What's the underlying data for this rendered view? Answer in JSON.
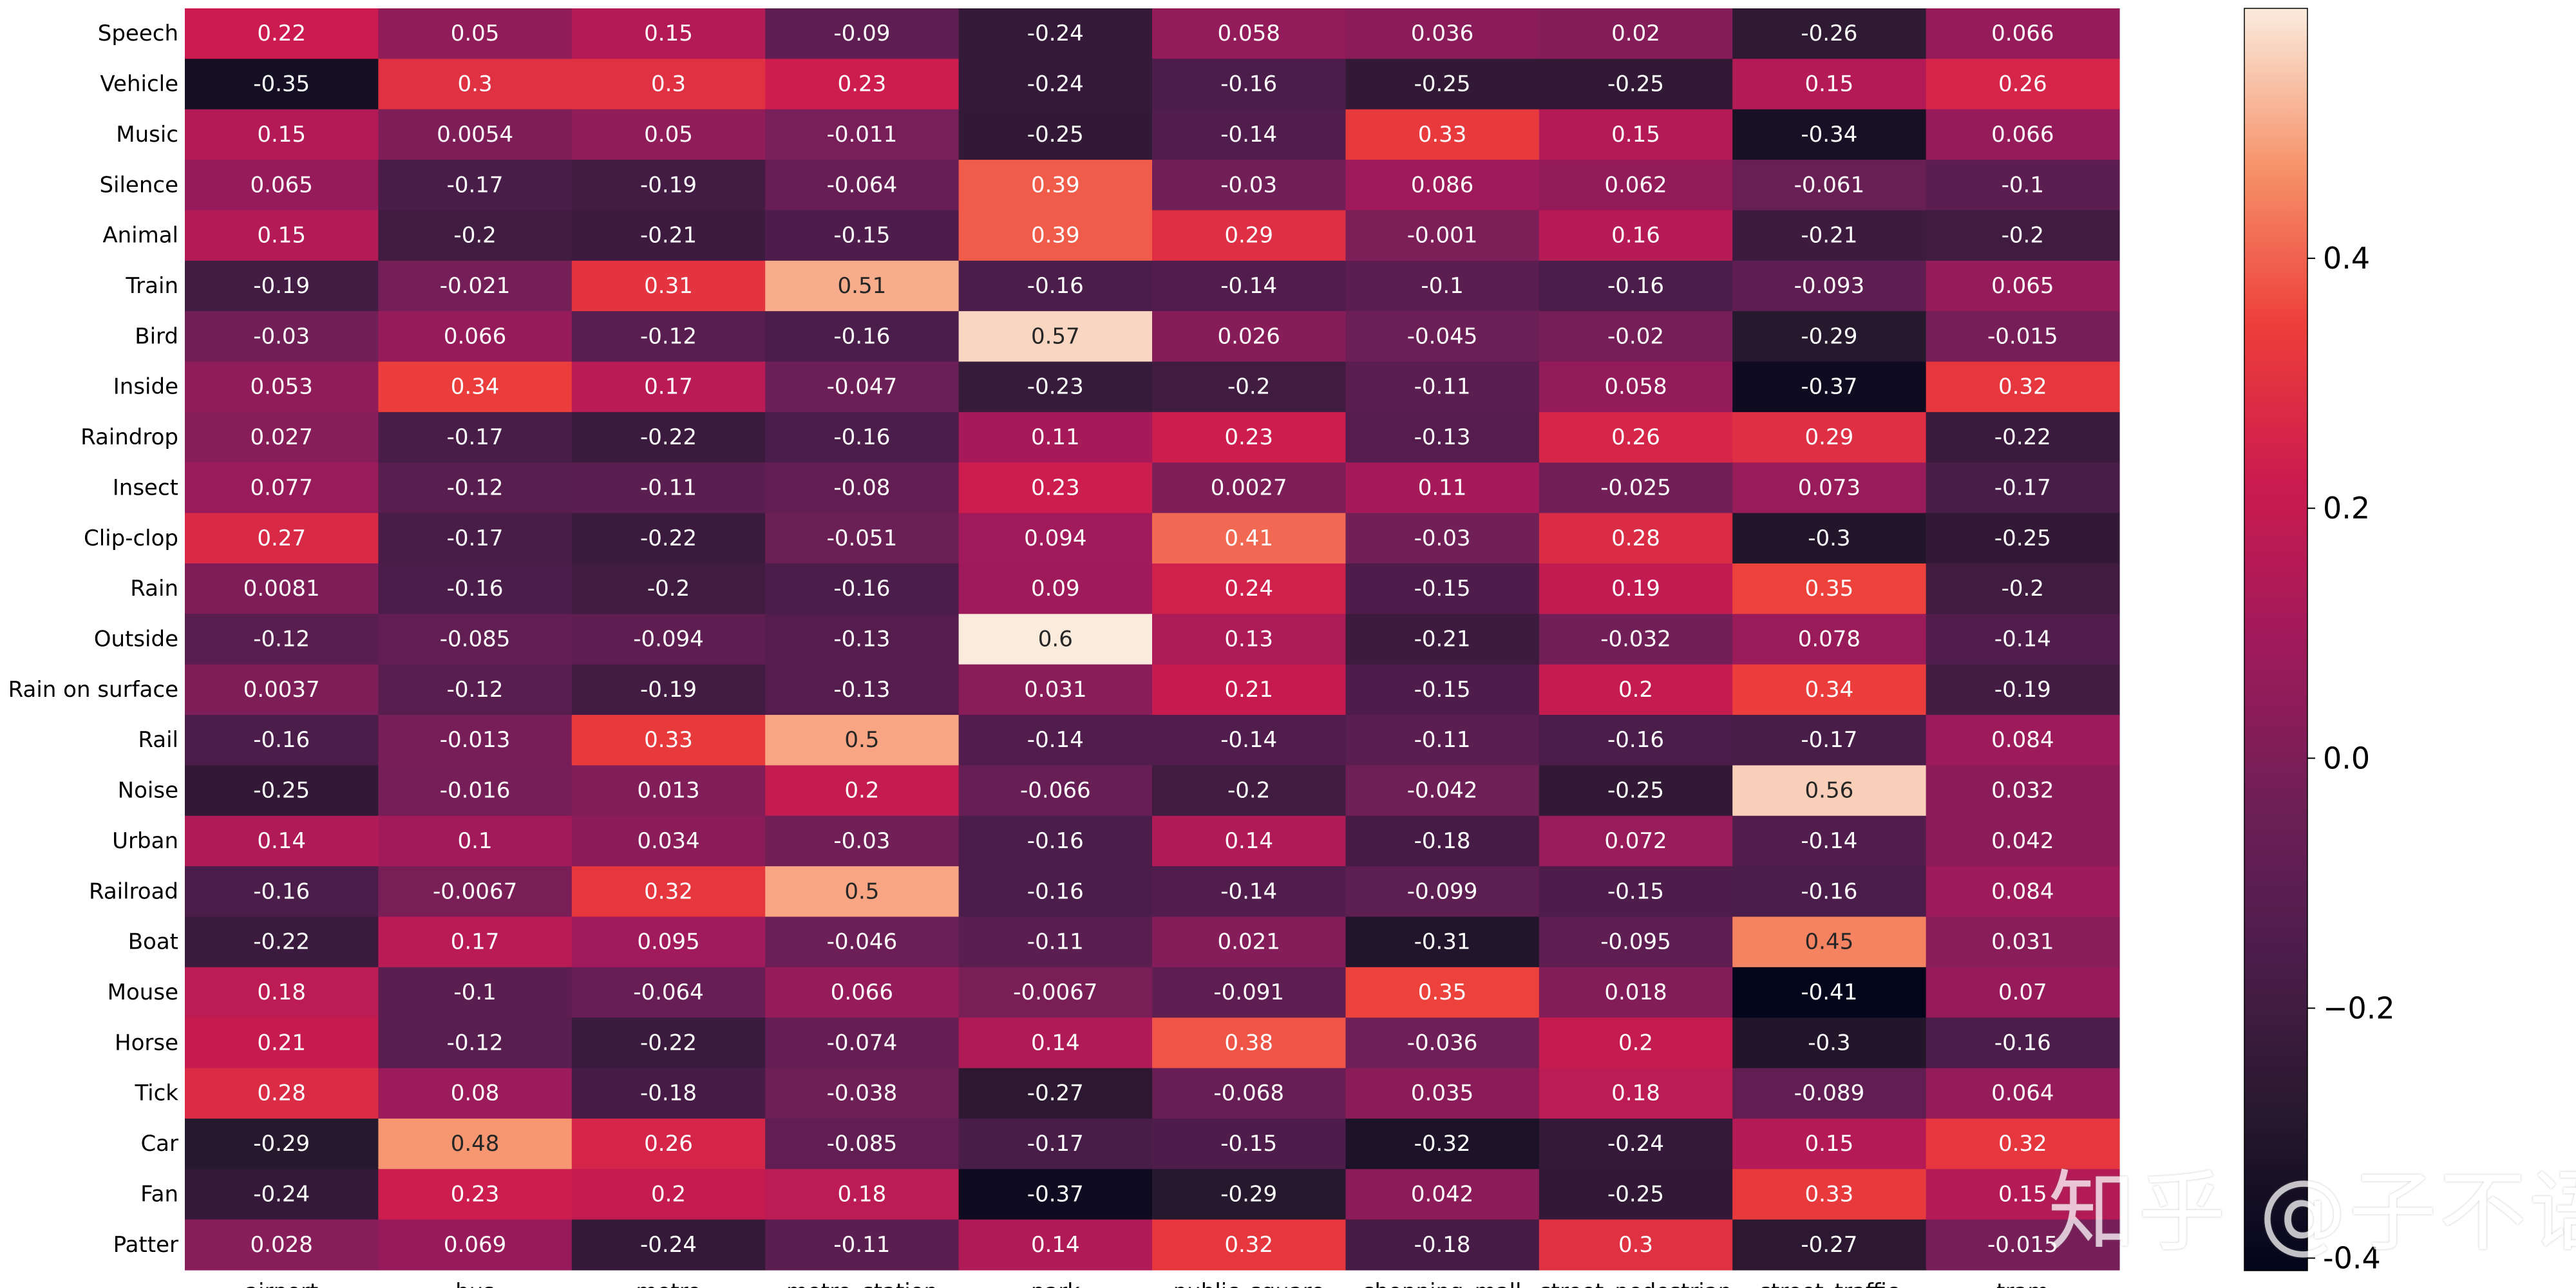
{
  "chart_data": {
    "type": "heatmap",
    "title": "",
    "xlabel": "",
    "ylabel": "",
    "columns": [
      "airport",
      "bus",
      "metro",
      "metro_station",
      "park",
      "public_square",
      "shopping_mall",
      "street_pedestrian",
      "street_traffic",
      "tram"
    ],
    "rows": [
      "Speech",
      "Vehicle",
      "Music",
      "Silence",
      "Animal",
      "Train",
      "Bird",
      "Inside",
      "Raindrop",
      "Insect",
      "Clip-clop",
      "Rain",
      "Outside",
      "Rain on surface",
      "Rail",
      "Noise",
      "Urban",
      "Railroad",
      "Boat",
      "Mouse",
      "Horse",
      "Tick",
      "Car",
      "Fan",
      "Patter"
    ],
    "values": [
      [
        "0.22",
        "0.05",
        "0.15",
        "-0.09",
        "-0.24",
        "0.058",
        "0.036",
        "0.02",
        "-0.26",
        "0.066"
      ],
      [
        "-0.35",
        "0.3",
        "0.3",
        "0.23",
        "-0.24",
        "-0.16",
        "-0.25",
        "-0.25",
        "0.15",
        "0.26"
      ],
      [
        "0.15",
        "0.0054",
        "0.05",
        "-0.011",
        "-0.25",
        "-0.14",
        "0.33",
        "0.15",
        "-0.34",
        "0.066"
      ],
      [
        "0.065",
        "-0.17",
        "-0.19",
        "-0.064",
        "0.39",
        "-0.03",
        "0.086",
        "0.062",
        "-0.061",
        "-0.1"
      ],
      [
        "0.15",
        "-0.2",
        "-0.21",
        "-0.15",
        "0.39",
        "0.29",
        "-0.001",
        "0.16",
        "-0.21",
        "-0.2"
      ],
      [
        "-0.19",
        "-0.021",
        "0.31",
        "0.51",
        "-0.16",
        "-0.14",
        "-0.1",
        "-0.16",
        "-0.093",
        "0.065"
      ],
      [
        "-0.03",
        "0.066",
        "-0.12",
        "-0.16",
        "0.57",
        "0.026",
        "-0.045",
        "-0.02",
        "-0.29",
        "-0.015"
      ],
      [
        "0.053",
        "0.34",
        "0.17",
        "-0.047",
        "-0.23",
        "-0.2",
        "-0.11",
        "0.058",
        "-0.37",
        "0.32"
      ],
      [
        "0.027",
        "-0.17",
        "-0.22",
        "-0.16",
        "0.11",
        "0.23",
        "-0.13",
        "0.26",
        "0.29",
        "-0.22"
      ],
      [
        "0.077",
        "-0.12",
        "-0.11",
        "-0.08",
        "0.23",
        "0.0027",
        "0.11",
        "-0.025",
        "0.073",
        "-0.17"
      ],
      [
        "0.27",
        "-0.17",
        "-0.22",
        "-0.051",
        "0.094",
        "0.41",
        "-0.03",
        "0.28",
        "-0.3",
        "-0.25"
      ],
      [
        "0.0081",
        "-0.16",
        "-0.2",
        "-0.16",
        "0.09",
        "0.24",
        "-0.15",
        "0.19",
        "0.35",
        "-0.2"
      ],
      [
        "-0.12",
        "-0.085",
        "-0.094",
        "-0.13",
        "0.6",
        "0.13",
        "-0.21",
        "-0.032",
        "0.078",
        "-0.14"
      ],
      [
        "0.0037",
        "-0.12",
        "-0.19",
        "-0.13",
        "0.031",
        "0.21",
        "-0.15",
        "0.2",
        "0.34",
        "-0.19"
      ],
      [
        "-0.16",
        "-0.013",
        "0.33",
        "0.5",
        "-0.14",
        "-0.14",
        "-0.11",
        "-0.16",
        "-0.17",
        "0.084"
      ],
      [
        "-0.25",
        "-0.016",
        "0.013",
        "0.2",
        "-0.066",
        "-0.2",
        "-0.042",
        "-0.25",
        "0.56",
        "0.032"
      ],
      [
        "0.14",
        "0.1",
        "0.034",
        "-0.03",
        "-0.16",
        "0.14",
        "-0.18",
        "0.072",
        "-0.14",
        "0.042"
      ],
      [
        "-0.16",
        "-0.0067",
        "0.32",
        "0.5",
        "-0.16",
        "-0.14",
        "-0.099",
        "-0.15",
        "-0.16",
        "0.084"
      ],
      [
        "-0.22",
        "0.17",
        "0.095",
        "-0.046",
        "-0.11",
        "0.021",
        "-0.31",
        "-0.095",
        "0.45",
        "0.031"
      ],
      [
        "0.18",
        "-0.1",
        "-0.064",
        "0.066",
        "-0.0067",
        "-0.091",
        "0.35",
        "0.018",
        "-0.41",
        "0.07"
      ],
      [
        "0.21",
        "-0.12",
        "-0.22",
        "-0.074",
        "0.14",
        "0.38",
        "-0.036",
        "0.2",
        "-0.3",
        "-0.16"
      ],
      [
        "0.28",
        "0.08",
        "-0.18",
        "-0.038",
        "-0.27",
        "-0.068",
        "0.035",
        "0.18",
        "-0.089",
        "0.064"
      ],
      [
        "-0.29",
        "0.48",
        "0.26",
        "-0.085",
        "-0.17",
        "-0.15",
        "-0.32",
        "-0.24",
        "0.15",
        "0.32"
      ],
      [
        "-0.24",
        "0.23",
        "0.2",
        "0.18",
        "-0.37",
        "-0.29",
        "0.042",
        "-0.25",
        "0.33",
        "0.15"
      ],
      [
        "0.028",
        "0.069",
        "-0.24",
        "-0.11",
        "0.14",
        "0.32",
        "-0.18",
        "0.3",
        "-0.27",
        "-0.015"
      ]
    ],
    "vmin": -0.41,
    "vmax": 0.6,
    "colormap": "rocket",
    "colorbar": {
      "ticks": [
        "-0.4",
        "−0.2",
        "0.0",
        "0.2",
        "0.4"
      ],
      "tick_values": [
        -0.4,
        -0.2,
        0.0,
        0.2,
        0.4
      ]
    },
    "grid": false,
    "legend": "colorbar-right"
  },
  "watermark": "知乎 @子不语"
}
